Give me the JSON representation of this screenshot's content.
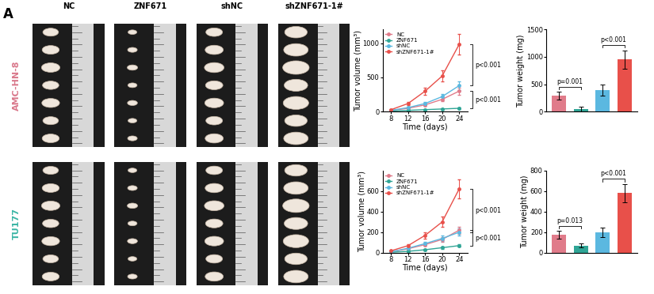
{
  "panel_label": "A",
  "row_labels": [
    "AMC-HN-8",
    "TU177"
  ],
  "column_labels": [
    "NC",
    "ZNF671",
    "shNC",
    "shZNF671-1#"
  ],
  "chart_data": [
    {
      "type": "line",
      "x": [
        8,
        12,
        16,
        20,
        24
      ],
      "xlim": [
        6,
        26
      ],
      "xticks": [
        8,
        12,
        16,
        20,
        24
      ],
      "ylim": [
        0,
        1200
      ],
      "yticks": [
        0,
        500,
        1000
      ],
      "xlabel": "Time (days)",
      "ylabel": "Tumor volume (mm³)",
      "legend": "upper left",
      "series": [
        {
          "name": "NC",
          "color": "#e07b8a",
          "marker": "circle",
          "line_style": "solid",
          "values": [
            20,
            50,
            100,
            180,
            300
          ],
          "errors": [
            5,
            10,
            20,
            30,
            50
          ]
        },
        {
          "name": "ZNF671",
          "color": "#2fa596",
          "marker": "circle",
          "line_style": "solid",
          "values": [
            10,
            20,
            30,
            40,
            50
          ],
          "errors": [
            3,
            5,
            8,
            10,
            15
          ]
        },
        {
          "name": "shNC",
          "color": "#5bb8e0",
          "marker": "circle",
          "line_style": "solid",
          "values": [
            20,
            60,
            120,
            220,
            380
          ],
          "errors": [
            5,
            12,
            25,
            40,
            60
          ]
        },
        {
          "name": "shZNF671-1#",
          "color": "#e8504a",
          "marker": "circle",
          "line_style": "solid",
          "values": [
            30,
            120,
            300,
            520,
            980
          ],
          "errors": [
            8,
            25,
            50,
            80,
            150
          ]
        }
      ],
      "annotations": [
        {
          "text": "p<0.001",
          "between": [
            "shNC",
            "shZNF671-1#"
          ]
        },
        {
          "text": "p<0.001",
          "between": [
            "NC",
            "ZNF671"
          ]
        }
      ]
    },
    {
      "type": "bar",
      "categories": [
        null,
        null,
        null,
        null
      ],
      "values": [
        290,
        50,
        390,
        950
      ],
      "errors": [
        70,
        40,
        100,
        170
      ],
      "colors": [
        "#e07b8a",
        "#2fa596",
        "#5bb8e0",
        "#e8504a"
      ],
      "ylim": [
        0,
        1500
      ],
      "yticks": [
        0,
        500,
        1000,
        1500
      ],
      "ylabel": "Tumor weight (mg)",
      "tick_labels": "y",
      "annotations": [
        {
          "text": "p=0.001",
          "between": [
            0,
            1
          ]
        },
        {
          "text": "p<0.001",
          "between": [
            2,
            3
          ]
        }
      ]
    },
    {
      "type": "line",
      "x": [
        8,
        12,
        16,
        20,
        24
      ],
      "xlim": [
        6,
        26
      ],
      "xticks": [
        8,
        12,
        16,
        20,
        24
      ],
      "ylim": [
        0,
        800
      ],
      "yticks": [
        0,
        200,
        400,
        600
      ],
      "xlabel": "Time (days)",
      "ylabel": "Tumor volume (mm³)",
      "legend": "upper left",
      "series": [
        {
          "name": "NC",
          "color": "#e07b8a",
          "marker": "circle",
          "line_style": "solid",
          "values": [
            10,
            40,
            80,
            130,
            220
          ],
          "errors": [
            3,
            8,
            15,
            20,
            35
          ]
        },
        {
          "name": "ZNF671",
          "color": "#2fa596",
          "marker": "circle",
          "line_style": "solid",
          "values": [
            5,
            15,
            30,
            50,
            70
          ],
          "errors": [
            2,
            4,
            6,
            10,
            12
          ]
        },
        {
          "name": "shNC",
          "color": "#5bb8e0",
          "marker": "circle",
          "line_style": "solid",
          "values": [
            10,
            45,
            90,
            140,
            200
          ],
          "errors": [
            3,
            8,
            15,
            25,
            35
          ]
        },
        {
          "name": "shZNF671-1#",
          "color": "#e8504a",
          "marker": "circle",
          "line_style": "solid",
          "values": [
            20,
            70,
            170,
            300,
            620
          ],
          "errors": [
            5,
            15,
            30,
            50,
            90
          ]
        }
      ],
      "annotations": [
        {
          "text": "p<0.001",
          "between": [
            "shNC",
            "shZNF671-1#"
          ]
        },
        {
          "text": "p<0.001",
          "between": [
            "NC",
            "ZNF671"
          ]
        }
      ]
    },
    {
      "type": "bar",
      "categories": [
        null,
        null,
        null,
        null
      ],
      "values": [
        175,
        70,
        200,
        580
      ],
      "errors": [
        40,
        20,
        45,
        90
      ],
      "colors": [
        "#e07b8a",
        "#2fa596",
        "#5bb8e0",
        "#e8504a"
      ],
      "ylim": [
        0,
        800
      ],
      "yticks": [
        0,
        200,
        400,
        600,
        800
      ],
      "ylabel": "Tumor weight (mg)",
      "tick_labels": "y",
      "annotations": [
        {
          "text": "p=0.013",
          "between": [
            0,
            1
          ]
        },
        {
          "text": "p<0.001",
          "between": [
            2,
            3
          ]
        }
      ]
    }
  ]
}
